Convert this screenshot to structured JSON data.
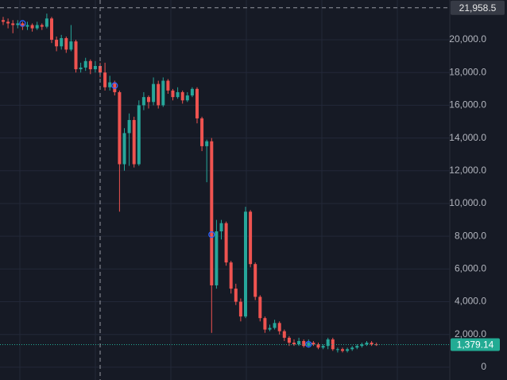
{
  "chart_data": {
    "type": "candlestick",
    "up_color": "#26a69a",
    "down_color": "#ef5350",
    "open": [
      21200,
      21100,
      21000,
      20900,
      21000,
      20800,
      20900,
      20700,
      20900,
      20800,
      21300,
      20000,
      19600,
      20100,
      19400,
      19900,
      18200,
      18300,
      18700,
      18200,
      18400,
      18000,
      17100,
      17400,
      16800,
      12400,
      14300,
      15100,
      12400,
      16000,
      16500,
      16200,
      17300,
      16000,
      17500,
      16900,
      16500,
      16800,
      16300,
      16600,
      17000,
      15200,
      13500,
      13800,
      5000,
      8300,
      8800,
      6400,
      4800,
      4000,
      3100,
      9500,
      6300,
      4300,
      3000,
      2300,
      2400,
      2700,
      2200,
      1800,
      1500,
      1400,
      1600,
      1300,
      1500,
      1400,
      1200,
      1300,
      1700,
      1100,
      1100,
      1000,
      1100,
      1200,
      1300,
      1400,
      1500,
      1400
    ],
    "high": [
      21400,
      21300,
      21200,
      21200,
      21100,
      21100,
      21000,
      21100,
      21000,
      21600,
      21400,
      20200,
      20300,
      20200,
      20900,
      20000,
      18600,
      18900,
      18800,
      18700,
      18600,
      18600,
      17800,
      17500,
      16900,
      14600,
      15500,
      15300,
      16300,
      16800,
      16600,
      17700,
      17500,
      17700,
      17600,
      17000,
      17100,
      16900,
      16800,
      17100,
      17100,
      15300,
      13900,
      14000,
      9000,
      9000,
      8900,
      6500,
      5100,
      4200,
      9800,
      9600,
      6400,
      4400,
      3100,
      2600,
      2900,
      2800,
      2300,
      1900,
      1700,
      1800,
      1700,
      1700,
      1600,
      1500,
      1400,
      1800,
      1800,
      1200,
      1200,
      1200,
      1300,
      1400,
      1500,
      1600,
      1600,
      1500
    ],
    "low": [
      20900,
      20700,
      20400,
      20700,
      20600,
      20600,
      20500,
      20600,
      20600,
      20700,
      19800,
      19300,
      19400,
      19200,
      19300,
      18000,
      18000,
      18100,
      17900,
      18000,
      17700,
      16900,
      16900,
      16600,
      9500,
      12000,
      12300,
      12200,
      12300,
      15700,
      15800,
      16000,
      15800,
      15900,
      16700,
      16300,
      16400,
      16100,
      16200,
      16500,
      14900,
      13200,
      11300,
      2100,
      4800,
      7800,
      6200,
      4500,
      3800,
      2800,
      3000,
      6100,
      4100,
      2800,
      2100,
      2200,
      2300,
      2000,
      1600,
      1300,
      1300,
      1300,
      1200,
      1200,
      1300,
      1100,
      1100,
      1100,
      1000,
      900,
      900,
      900,
      1000,
      1100,
      1200,
      1300,
      1300,
      1300
    ],
    "close": [
      21100,
      21000,
      20900,
      21000,
      20800,
      20900,
      20700,
      20900,
      20800,
      21300,
      20000,
      19600,
      20100,
      19400,
      19900,
      18200,
      18300,
      18700,
      18200,
      18400,
      18000,
      17100,
      17400,
      16800,
      12400,
      14300,
      15100,
      12400,
      16000,
      16500,
      16200,
      17300,
      16000,
      17500,
      16900,
      16500,
      16800,
      16300,
      16600,
      17000,
      15200,
      13500,
      13800,
      5000,
      8300,
      8800,
      6400,
      4800,
      4000,
      3100,
      9500,
      6300,
      4300,
      3000,
      2300,
      2400,
      2700,
      2200,
      1800,
      1500,
      1400,
      1600,
      1300,
      1500,
      1400,
      1200,
      1300,
      1700,
      1100,
      1100,
      1000,
      1100,
      1200,
      1300,
      1400,
      1500,
      1400,
      1379
    ],
    "markers": [
      {
        "index": 4,
        "value": 21000
      },
      {
        "index": 23,
        "value": 17200
      },
      {
        "index": 43,
        "value": 8100
      },
      {
        "index": 63,
        "value": 1400
      }
    ],
    "ylim": [
      -780,
      22430
    ],
    "yticks": [
      0,
      {
        "value": 2000,
        "label": "2,000.0"
      },
      {
        "value": 4000,
        "label": "4,000.0"
      },
      {
        "value": 6000,
        "label": "6,000.0"
      },
      {
        "value": 8000,
        "label": "8,000.0"
      },
      {
        "value": 10000,
        "label": "10,000.0"
      },
      {
        "value": 12000,
        "label": "12,000.0"
      },
      {
        "value": 14000,
        "label": "14,000.0"
      },
      {
        "value": 16000,
        "label": "16,000.0"
      },
      {
        "value": 18000,
        "label": "18,000.0"
      },
      {
        "value": 20000,
        "label": "20,000.0"
      }
    ],
    "grid": true,
    "crosshair": {
      "index": 20,
      "value": 21958.5,
      "label": "21,958.5"
    },
    "last_price": {
      "value": 1379.14,
      "label": "1,379.14",
      "color": "#22ab94"
    }
  }
}
